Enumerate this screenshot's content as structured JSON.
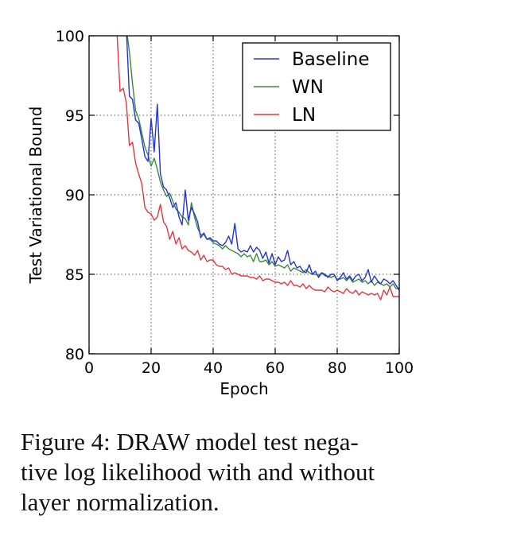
{
  "chart_data": {
    "type": "line",
    "xlabel": "Epoch",
    "ylabel": "Test Variational Bound",
    "xlim": [
      0,
      100
    ],
    "ylim": [
      80,
      100
    ],
    "xticks": [
      "0",
      "20",
      "40",
      "60",
      "80",
      "100"
    ],
    "yticks": [
      "80",
      "85",
      "90",
      "95",
      "100"
    ],
    "grid": true,
    "legend_position": "top-right",
    "series": [
      {
        "name": "Baseline",
        "color": "#2233dd",
        "x": [
          12,
          13,
          14,
          15,
          16,
          17,
          18,
          19,
          20,
          21,
          22,
          23,
          24,
          25,
          26,
          27,
          28,
          29,
          30,
          31,
          32,
          33,
          34,
          35,
          36,
          37,
          38,
          39,
          40,
          41,
          42,
          43,
          44,
          45,
          46,
          47,
          48,
          49,
          50,
          51,
          52,
          53,
          54,
          55,
          56,
          57,
          58,
          59,
          60,
          61,
          62,
          63,
          64,
          65,
          66,
          67,
          68,
          69,
          70,
          71,
          72,
          73,
          74,
          75,
          76,
          77,
          78,
          79,
          80,
          81,
          82,
          83,
          84,
          85,
          86,
          87,
          88,
          89,
          90,
          91,
          92,
          93,
          94,
          95,
          96,
          97,
          98,
          99,
          100
        ],
        "y": [
          100.5,
          96.2,
          96.0,
          94.7,
          94.5,
          93.5,
          92.4,
          92.1,
          94.8,
          92.7,
          95.7,
          91.3,
          90.5,
          90.3,
          89.8,
          89.2,
          89.5,
          88.6,
          88.1,
          90.3,
          88.4,
          89.2,
          88.8,
          88.3,
          87.3,
          87.6,
          87.2,
          87.3,
          87.1,
          87.1,
          86.9,
          86.8,
          87.0,
          87.4,
          86.9,
          88.2,
          86.6,
          86.4,
          86.5,
          86.4,
          86.8,
          86.4,
          86.7,
          86.5,
          86.0,
          86.4,
          85.7,
          86.3,
          85.6,
          86.1,
          85.8,
          85.9,
          86.5,
          85.6,
          85.8,
          85.4,
          85.5,
          85.2,
          85.1,
          85.6,
          85.0,
          85.2,
          84.8,
          85.1,
          85.0,
          84.8,
          85.0,
          85.0,
          84.6,
          84.8,
          85.1,
          84.7,
          84.9,
          84.6,
          84.9,
          85.0,
          84.6,
          84.8,
          85.3,
          84.5,
          84.9,
          84.6,
          84.4,
          84.7,
          84.6,
          84.4,
          84.6,
          84.3,
          84.0
        ]
      },
      {
        "name": "WN",
        "color": "#3a8a3a",
        "x": [
          12,
          13,
          14,
          15,
          16,
          17,
          18,
          19,
          20,
          21,
          22,
          23,
          24,
          25,
          26,
          27,
          28,
          29,
          30,
          31,
          32,
          33,
          34,
          35,
          36,
          37,
          38,
          39,
          40,
          41,
          42,
          43,
          44,
          45,
          46,
          47,
          48,
          49,
          50,
          51,
          52,
          53,
          54,
          55,
          56,
          57,
          58,
          59,
          60,
          61,
          62,
          63,
          64,
          65,
          66,
          67,
          68,
          69,
          70,
          71,
          72,
          73,
          74,
          75,
          76,
          77,
          78,
          79,
          80,
          81,
          82,
          83,
          84,
          85,
          86,
          87,
          88,
          89,
          90,
          91,
          92,
          93,
          94,
          95,
          96,
          97,
          98,
          99,
          100
        ],
        "y": [
          100.5,
          99.0,
          97.0,
          95.3,
          94.8,
          93.9,
          93.0,
          92.5,
          91.8,
          92.3,
          91.6,
          90.8,
          90.3,
          89.9,
          90.1,
          89.6,
          89.1,
          88.9,
          88.6,
          88.5,
          88.1,
          89.5,
          88.6,
          87.9,
          87.5,
          87.5,
          87.2,
          87.2,
          87.0,
          86.9,
          86.8,
          86.6,
          86.8,
          86.6,
          86.5,
          86.4,
          86.3,
          86.1,
          86.3,
          86.1,
          86.2,
          85.8,
          86.3,
          85.8,
          85.8,
          85.9,
          85.6,
          85.8,
          85.5,
          85.6,
          85.5,
          85.4,
          85.6,
          85.2,
          85.4,
          85.3,
          85.2,
          85.1,
          85.3,
          85.1,
          85.0,
          85.0,
          84.9,
          85.1,
          84.9,
          84.9,
          84.8,
          84.9,
          84.7,
          84.7,
          84.8,
          84.6,
          84.8,
          84.5,
          84.6,
          84.7,
          84.5,
          84.6,
          84.4,
          84.6,
          84.3,
          84.5,
          84.4,
          84.3,
          84.4,
          84.2,
          84.4,
          84.1,
          84.1
        ]
      },
      {
        "name": "LN",
        "color": "#e8363c",
        "x": [
          9,
          10,
          11,
          12,
          13,
          14,
          15,
          16,
          17,
          18,
          19,
          20,
          21,
          22,
          23,
          24,
          25,
          26,
          27,
          28,
          29,
          30,
          31,
          32,
          33,
          34,
          35,
          36,
          37,
          38,
          39,
          40,
          41,
          42,
          43,
          44,
          45,
          46,
          47,
          48,
          49,
          50,
          51,
          52,
          53,
          54,
          55,
          56,
          57,
          58,
          59,
          60,
          61,
          62,
          63,
          64,
          65,
          66,
          67,
          68,
          69,
          70,
          71,
          72,
          73,
          74,
          75,
          76,
          77,
          78,
          79,
          80,
          81,
          82,
          83,
          84,
          85,
          86,
          87,
          88,
          89,
          90,
          91,
          92,
          93,
          94,
          95,
          96,
          97,
          98,
          99,
          100
        ],
        "y": [
          100.2,
          96.5,
          96.7,
          95.8,
          93.1,
          93.3,
          92.0,
          91.3,
          90.7,
          89.2,
          88.9,
          88.8,
          88.4,
          88.6,
          89.4,
          88.3,
          88.0,
          87.2,
          87.7,
          86.9,
          87.3,
          86.6,
          86.8,
          86.5,
          86.4,
          86.2,
          86.5,
          85.9,
          86.2,
          85.8,
          85.9,
          85.9,
          85.6,
          85.5,
          85.5,
          85.3,
          85.4,
          85.0,
          85.1,
          85.0,
          84.9,
          84.9,
          84.9,
          84.8,
          84.8,
          84.7,
          84.9,
          84.6,
          84.7,
          84.7,
          84.6,
          84.5,
          84.5,
          84.4,
          84.5,
          84.3,
          84.6,
          84.3,
          84.3,
          84.2,
          84.4,
          84.1,
          84.3,
          84.1,
          84.0,
          84.0,
          84.0,
          83.9,
          84.2,
          84.0,
          83.9,
          84.0,
          83.9,
          83.8,
          84.1,
          83.9,
          83.8,
          84.0,
          83.7,
          83.9,
          83.8,
          83.7,
          83.8,
          83.7,
          83.8,
          83.4,
          84.0,
          83.7,
          84.2,
          83.6,
          83.6,
          83.6
        ]
      }
    ]
  },
  "caption": {
    "lines": [
      "Figure 4:  DRAW model test nega-",
      "tive log likelihood with and without",
      "layer normalization."
    ]
  }
}
